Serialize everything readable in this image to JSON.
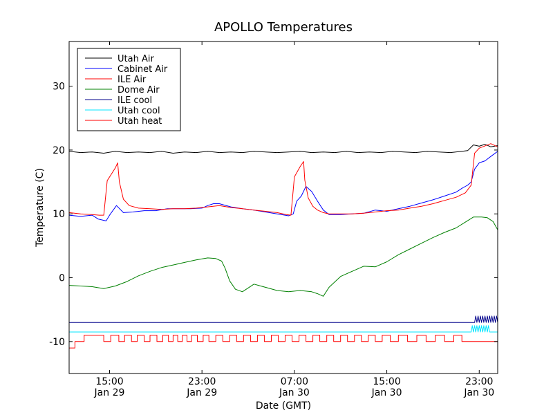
{
  "chart_data": {
    "type": "line",
    "title": "APOLLO Temperatures",
    "xlabel": "Date (GMT)",
    "ylabel": "Temperature (C)",
    "xlim": [
      11.5,
      48.6
    ],
    "ylim": [
      -15,
      37
    ],
    "x_units": "hours since 00:00 GMT Jan 29",
    "grid": false,
    "legend_position": "top-left",
    "x_ticks": [
      {
        "x": 15,
        "line1": "15:00",
        "line2": "Jan 29"
      },
      {
        "x": 23,
        "line1": "23:00",
        "line2": "Jan 29"
      },
      {
        "x": 31,
        "line1": "07:00",
        "line2": "Jan 30"
      },
      {
        "x": 39,
        "line1": "15:00",
        "line2": "Jan 30"
      },
      {
        "x": 47,
        "line1": "23:00",
        "line2": "Jan 30"
      }
    ],
    "y_ticks": [
      {
        "y": -10,
        "label": "-10"
      },
      {
        "y": 0,
        "label": "0"
      },
      {
        "y": 10,
        "label": "10"
      },
      {
        "y": 20,
        "label": "20"
      },
      {
        "y": 30,
        "label": "30"
      }
    ],
    "series": [
      {
        "name": "Utah Air",
        "color": "#000000",
        "x": [
          11.5,
          12.5,
          13.5,
          14.5,
          15.5,
          16.5,
          17.5,
          18.5,
          19.5,
          20.5,
          21.5,
          22.5,
          23.5,
          24.5,
          25.5,
          26.5,
          27.5,
          28.5,
          29.5,
          30.5,
          31.5,
          32.5,
          33.5,
          34.5,
          35.5,
          36.5,
          37.5,
          38.5,
          39.5,
          40.5,
          41.5,
          42.5,
          43.5,
          44.5,
          45.5,
          46.0,
          46.5,
          47.0,
          47.5,
          48.0,
          48.6
        ],
        "y": [
          19.8,
          19.6,
          19.7,
          19.5,
          19.8,
          19.6,
          19.7,
          19.6,
          19.8,
          19.5,
          19.7,
          19.6,
          19.8,
          19.6,
          19.7,
          19.6,
          19.8,
          19.7,
          19.6,
          19.7,
          19.8,
          19.6,
          19.7,
          19.6,
          19.8,
          19.6,
          19.7,
          19.6,
          19.8,
          19.7,
          19.6,
          19.8,
          19.7,
          19.6,
          19.8,
          19.9,
          20.8,
          20.6,
          20.9,
          20.5,
          20.7
        ]
      },
      {
        "name": "Cabinet Air",
        "color": "#0000ff",
        "x": [
          11.5,
          12.5,
          13.5,
          14.0,
          14.7,
          15.0,
          15.6,
          16.2,
          17.0,
          18.0,
          19.0,
          20.0,
          21.0,
          22.0,
          23.0,
          23.5,
          24.0,
          24.5,
          25.5,
          26.5,
          27.5,
          28.5,
          29.5,
          30.5,
          30.9,
          31.2,
          31.6,
          32.0,
          32.5,
          33.0,
          33.5,
          34.0,
          35.0,
          36.0,
          37.0,
          38.0,
          39.0,
          40.0,
          41.0,
          42.0,
          43.0,
          44.0,
          45.0,
          45.5,
          45.8,
          46.0,
          46.3,
          46.6,
          47.0,
          47.5,
          48.0,
          48.6
        ],
        "y": [
          9.8,
          9.6,
          9.8,
          9.2,
          8.9,
          9.8,
          11.3,
          10.2,
          10.3,
          10.5,
          10.5,
          10.8,
          10.8,
          10.8,
          10.9,
          11.3,
          11.6,
          11.6,
          11.1,
          10.8,
          10.6,
          10.3,
          10.0,
          9.7,
          10.0,
          12.0,
          12.8,
          14.3,
          13.5,
          12.0,
          10.6,
          9.9,
          9.9,
          10.0,
          10.1,
          10.6,
          10.4,
          10.8,
          11.2,
          11.7,
          12.2,
          12.8,
          13.4,
          14.0,
          14.3,
          14.5,
          15.0,
          17.0,
          18.0,
          18.3,
          19.0,
          19.8
        ]
      },
      {
        "name": "ILE Air",
        "color": "#ff0000",
        "x": [
          11.5,
          12.5,
          13.5,
          14.1,
          14.5,
          14.8,
          15.5,
          15.7,
          15.85,
          16.2,
          16.7,
          17.5,
          18.5,
          19.5,
          20.5,
          21.5,
          22.5,
          23.5,
          24.5,
          25.5,
          26.5,
          27.5,
          28.5,
          29.5,
          30.3,
          30.7,
          31.0,
          31.5,
          31.8,
          31.9,
          32.2,
          32.6,
          33.0,
          33.5,
          34.0,
          35.0,
          36.0,
          37.0,
          38.0,
          39.0,
          40.0,
          41.0,
          42.0,
          43.0,
          44.0,
          45.0,
          45.8,
          46.3,
          46.6,
          47.0,
          48.0,
          48.6
        ],
        "y": [
          10.2,
          10.0,
          9.9,
          9.8,
          9.8,
          15.2,
          17.2,
          18.0,
          15.0,
          12.3,
          11.3,
          10.9,
          10.8,
          10.7,
          10.8,
          10.8,
          10.9,
          11.1,
          11.3,
          11.0,
          10.8,
          10.6,
          10.4,
          10.2,
          9.9,
          9.8,
          15.8,
          17.4,
          18.2,
          15.3,
          12.5,
          11.2,
          10.6,
          10.2,
          10.0,
          10.0,
          10.0,
          10.1,
          10.3,
          10.5,
          10.6,
          10.9,
          11.2,
          11.6,
          12.1,
          12.6,
          13.3,
          14.5,
          19.5,
          20.3,
          21.0,
          20.5
        ]
      },
      {
        "name": "Dome Air",
        "color": "#008000",
        "x": [
          11.5,
          12.5,
          13.5,
          14.5,
          15.5,
          16.5,
          17.5,
          18.5,
          19.5,
          20.5,
          21.5,
          22.5,
          23.5,
          24.2,
          24.7,
          25.0,
          25.4,
          25.9,
          26.5,
          27.5,
          28.5,
          29.5,
          30.5,
          31.5,
          32.5,
          33.0,
          33.5,
          34.0,
          35.0,
          36.0,
          37.0,
          38.0,
          39.0,
          40.0,
          41.0,
          42.0,
          43.0,
          44.0,
          45.0,
          45.7,
          46.5,
          47.2,
          47.7,
          48.2,
          48.6
        ],
        "y": [
          -1.2,
          -1.3,
          -1.4,
          -1.7,
          -1.3,
          -0.6,
          0.3,
          1.0,
          1.6,
          2.0,
          2.4,
          2.8,
          3.1,
          3.0,
          2.6,
          1.5,
          -0.5,
          -1.8,
          -2.2,
          -1.0,
          -1.5,
          -2.0,
          -2.2,
          -2.0,
          -2.2,
          -2.5,
          -2.9,
          -1.5,
          0.2,
          1.0,
          1.8,
          1.7,
          2.5,
          3.6,
          4.5,
          5.4,
          6.3,
          7.1,
          7.8,
          8.6,
          9.5,
          9.5,
          9.4,
          8.8,
          7.5
        ]
      },
      {
        "name": "ILE cool",
        "color": "#00008b",
        "x": [
          11.5,
          46.6,
          46.7,
          46.8,
          46.9,
          47.0,
          47.1,
          47.2,
          47.3,
          47.4,
          47.5,
          47.6,
          47.7,
          47.8,
          47.9,
          48.0,
          48.1,
          48.2,
          48.3,
          48.4,
          48.5,
          48.6
        ],
        "y": [
          -7.0,
          -7.0,
          -6.0,
          -7.0,
          -6.0,
          -7.0,
          -6.0,
          -7.0,
          -6.0,
          -7.0,
          -6.0,
          -7.0,
          -6.0,
          -7.0,
          -6.0,
          -7.0,
          -6.0,
          -7.0,
          -6.0,
          -7.0,
          -6.0,
          -7.0
        ]
      },
      {
        "name": "Utah cool",
        "color": "#00e5ff",
        "x": [
          11.5,
          46.3,
          46.4,
          46.5,
          46.6,
          46.7,
          46.8,
          46.9,
          47.0,
          47.1,
          47.2,
          47.3,
          47.4,
          47.5,
          47.6,
          47.7,
          47.8,
          47.9,
          48.0,
          48.6
        ],
        "y": [
          -8.5,
          -8.5,
          -7.5,
          -8.5,
          -7.5,
          -8.5,
          -7.5,
          -8.5,
          -7.5,
          -8.5,
          -7.5,
          -8.5,
          -7.5,
          -8.5,
          -7.5,
          -8.5,
          -7.5,
          -8.5,
          -8.5,
          -8.5
        ]
      },
      {
        "name": "Utah heat",
        "color": "#ff0000",
        "mode": "step",
        "x": [
          11.5,
          11.8,
          12.0,
          12.4,
          12.8,
          14.5,
          15.1,
          15.8,
          16.3,
          16.9,
          17.4,
          18.0,
          18.5,
          19.1,
          19.6,
          20.1,
          20.5,
          20.9,
          21.3,
          21.7,
          22.1,
          22.6,
          23.1,
          23.6,
          24.2,
          24.8,
          25.4,
          26.0,
          26.6,
          27.2,
          27.8,
          28.4,
          29.0,
          29.6,
          30.2,
          30.8,
          31.4,
          32.0,
          32.6,
          33.2,
          33.8,
          34.4,
          35.0,
          35.6,
          36.2,
          36.8,
          37.4,
          38.0,
          38.6,
          39.3,
          40.0,
          40.8,
          41.6,
          42.4,
          43.2,
          44.0,
          44.8,
          45.5,
          46.0,
          48.6
        ],
        "y": [
          -11,
          -11,
          -10,
          -10,
          -9,
          -10,
          -9,
          -10,
          -9,
          -10,
          -9,
          -10,
          -9,
          -10,
          -9,
          -10,
          -9,
          -10,
          -9,
          -10,
          -9,
          -10,
          -9,
          -10,
          -9,
          -10,
          -9,
          -10,
          -9,
          -10,
          -9,
          -10,
          -9,
          -10,
          -9,
          -10,
          -9,
          -10,
          -9,
          -10,
          -9,
          -10,
          -9,
          -10,
          -9,
          -10,
          -9,
          -10,
          -9,
          -10,
          -9,
          -10,
          -9,
          -10,
          -9,
          -10,
          -9,
          -10,
          -10,
          -10
        ]
      }
    ]
  }
}
